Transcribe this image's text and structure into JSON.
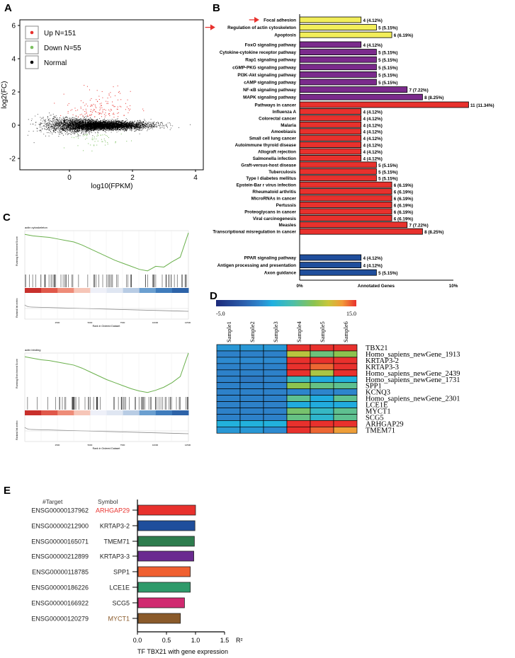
{
  "panels": {
    "a": "A",
    "b": "B",
    "c": "C",
    "d": "D",
    "e": "E"
  },
  "chart_data": [
    {
      "type": "scatter",
      "panel": "A",
      "xlabel": "log10(FPKM)",
      "ylabel": "log2(FC)",
      "xlim": [
        -1.6,
        4.3
      ],
      "ylim": [
        -2.6,
        6.3
      ],
      "xticks": [
        "0",
        "2",
        "4"
      ],
      "yticks": [
        "6",
        "4",
        "2",
        "0",
        "-2"
      ],
      "legend": [
        {
          "label": "Up N=151",
          "color": "#e8312d"
        },
        {
          "label": "Down  N=55",
          "color": "#7cc060"
        },
        {
          "label": "Normal",
          "color": "#000000"
        }
      ],
      "up_count": 151,
      "down_count": 55,
      "legend_position": "top-left"
    },
    {
      "type": "bar",
      "panel": "B",
      "orientation": "horizontal",
      "xlabel": "Annotated Genes",
      "xticks": [
        "0%",
        "10%"
      ],
      "xlim": [
        0,
        10
      ],
      "groups": [
        {
          "color": "#f2ee5a",
          "items": [
            {
              "label": "Focal adhesion",
              "value": 4,
              "text": "4 (4.12%)",
              "arrow": true
            },
            {
              "label": "Regulation of actin cytoskeleton",
              "value": 5,
              "text": "5 (5.15%)",
              "arrow": true
            },
            {
              "label": "Apoptosis",
              "value": 6,
              "text": "6 (6.19%)"
            }
          ]
        },
        {
          "color": "#7b2b8c",
          "items": [
            {
              "label": "FoxO signaling pathway",
              "value": 4,
              "text": "4 (4.12%)"
            },
            {
              "label": "Cytokine-cytokine receptor pathway",
              "value": 5,
              "text": "5 (5.15%)"
            },
            {
              "label": "Rap1 signaling pathway",
              "value": 5,
              "text": "5 (5.15%)"
            },
            {
              "label": "cGMP-PKG signaling pathway",
              "value": 5,
              "text": "5 (5.15%)"
            },
            {
              "label": "PI3K-Akt signaling pathway",
              "value": 5,
              "text": "5 (5.15%)"
            },
            {
              "label": "cAMP signaling pathway",
              "value": 5,
              "text": "5 (5.15%)"
            },
            {
              "label": "NF-κB signaling pathway",
              "value": 7,
              "text": "7 (7.22%)"
            },
            {
              "label": "MAPK signaling pathway",
              "value": 8,
              "text": "8 (8.25%)"
            }
          ]
        },
        {
          "color": "#e8312d",
          "items": [
            {
              "label": "Pathways in cancer",
              "value": 11,
              "text": "11 (11.34%)"
            },
            {
              "label": "Influenza A",
              "value": 4,
              "text": "4 (4.12%)"
            },
            {
              "label": "Colorectal cancer",
              "value": 4,
              "text": "4 (4.12%)"
            },
            {
              "label": "Malaria",
              "value": 4,
              "text": "4 (4.12%)"
            },
            {
              "label": "Amoebiasis",
              "value": 4,
              "text": "4 (4.12%)"
            },
            {
              "label": "Small cell lung cancer",
              "value": 4,
              "text": "4 (4.12%)"
            },
            {
              "label": "Autoimmune thyroid disease",
              "value": 4,
              "text": "4 (4.12%)"
            },
            {
              "label": "Allograft rejection",
              "value": 4,
              "text": "4 (4.12%)"
            },
            {
              "label": "Salmonella infection",
              "value": 4,
              "text": "4 (4.12%)"
            },
            {
              "label": "Graft-versus-host disease",
              "value": 5,
              "text": "5 (5.15%)"
            },
            {
              "label": "Tuberculosis",
              "value": 5,
              "text": "5 (5.15%)"
            },
            {
              "label": "Type I diabetes mellitus",
              "value": 5,
              "text": "5 (5.15%)"
            },
            {
              "label": "Epstein-Bar r virus infection",
              "value": 6,
              "text": "6 (6.19%)"
            },
            {
              "label": "Rheumatoid arthritis",
              "value": 6,
              "text": "6 (6.19%)"
            },
            {
              "label": "MicroRNAs in cancer",
              "value": 6,
              "text": "6 (6.19%)"
            },
            {
              "label": "Pertussis",
              "value": 6,
              "text": "6 (6.19%)"
            },
            {
              "label": "Proteoglycans in cancer",
              "value": 6,
              "text": "6 (6.19%)"
            },
            {
              "label": "Viral carcinogenesis",
              "value": 6,
              "text": "6 (6.19%)"
            },
            {
              "label": "Measles",
              "value": 7,
              "text": "7 (7.22%)"
            },
            {
              "label": "Transcriptional misregulation in cancer",
              "value": 8,
              "text": "8 (8.25%)"
            }
          ]
        },
        {
          "color": "#1f4e9c",
          "items": [
            {
              "label": "PPAR signaling pathway",
              "value": 4,
              "text": "4 (4.12%)"
            },
            {
              "label": "Antigen processing and presentation",
              "value": 4,
              "text": "4 (4.12%)"
            },
            {
              "label": "Axon guidance",
              "value": 5,
              "text": "5 (5.15%)"
            }
          ]
        }
      ]
    },
    {
      "type": "line",
      "panel": "C",
      "plots": [
        {
          "title": "actin cytoskeleton",
          "ylabel": "Running Enrichment Score",
          "ylabel2": "Ranked list metric",
          "xlabel": "Rank in Ordered Dataset",
          "xticks": [
            "2500",
            "5000",
            "7500",
            "10000",
            "12500"
          ],
          "es": [
            0,
            -0.02,
            -0.03,
            -0.04,
            -0.06,
            -0.08,
            -0.1,
            -0.14,
            -0.19,
            -0.24,
            -0.29,
            -0.34,
            -0.38,
            -0.42,
            -0.46,
            -0.48,
            -0.42,
            -0.43,
            -0.36,
            -0.3,
            0.02
          ]
        },
        {
          "title": "actin binding",
          "ylabel": "Running Enrichment Score",
          "ylabel2": "Ranked list metric",
          "xlabel": "Rank in Ordered Dataset",
          "xticks": [
            "2500",
            "5000",
            "7500",
            "10000",
            "12500"
          ],
          "es": [
            0,
            -0.02,
            -0.04,
            -0.05,
            -0.07,
            -0.09,
            -0.11,
            -0.15,
            -0.2,
            -0.25,
            -0.3,
            -0.34,
            -0.38,
            -0.42,
            -0.45,
            -0.47,
            -0.44,
            -0.4,
            -0.34,
            -0.26,
            0.05
          ]
        }
      ]
    },
    {
      "type": "heatmap",
      "panel": "D",
      "colorbar": {
        "min_label": "-5.0",
        "max_label": "15.0",
        "range": [
          -5,
          15
        ]
      },
      "columns": [
        "Sample1",
        "Sample2",
        "Sample3",
        "Sample4",
        "Sample5",
        "Sample6"
      ],
      "rows": [
        {
          "gene": "TBX21",
          "values": [
            2,
            2,
            2,
            15,
            15,
            15
          ]
        },
        {
          "gene": "Homo_sapiens_newGene_1913",
          "values": [
            1,
            1,
            1,
            10.5,
            7.5,
            9
          ]
        },
        {
          "gene": "KRTAP3-2",
          "values": [
            1.5,
            1.5,
            1.5,
            15,
            15,
            15
          ]
        },
        {
          "gene": "KRTAP3-3",
          "values": [
            1,
            1,
            1,
            15,
            14,
            15
          ]
        },
        {
          "gene": "Homo_sapiens_newGene_2439",
          "values": [
            1,
            1,
            1,
            15,
            10,
            15
          ]
        },
        {
          "gene": "Homo_sapiens_newGene_1731",
          "values": [
            1,
            0.5,
            1,
            5,
            2.8,
            3.2
          ]
        },
        {
          "gene": "SPP1",
          "values": [
            1,
            1,
            1,
            9,
            7.2,
            6.8
          ]
        },
        {
          "gene": "KCNQ3",
          "values": [
            1,
            1,
            1,
            1.2,
            1.2,
            1.2
          ]
        },
        {
          "gene": "Homo_sapiens_newGene_2301",
          "values": [
            1,
            1,
            1,
            6.8,
            2.8,
            6.8
          ]
        },
        {
          "gene": "LCE1E",
          "values": [
            1,
            1,
            1,
            2.8,
            2.8,
            2.8
          ]
        },
        {
          "gene": "MYCT1",
          "values": [
            1,
            1,
            1,
            8,
            4.5,
            6.8
          ]
        },
        {
          "gene": "SCG5",
          "values": [
            1,
            1,
            1,
            7.2,
            4,
            6.8
          ]
        },
        {
          "gene": "ARHGAP29",
          "values": [
            3.2,
            3.2,
            3.2,
            15,
            15,
            15
          ]
        },
        {
          "gene": "TMEM71",
          "values": [
            2,
            2,
            1.5,
            15,
            14,
            12.8
          ]
        }
      ]
    },
    {
      "type": "bar",
      "panel": "E",
      "orientation": "horizontal",
      "header_target": "#Target",
      "header_symbol": "Symbol",
      "xlabel": "TF TBX21 with gene expression",
      "xunit": "R²",
      "xlim": [
        0,
        1.5
      ],
      "xticks": [
        "0.0",
        "0.5",
        "1.0",
        "1.5"
      ],
      "bars": [
        {
          "target": "ENSG00000137962",
          "symbol": "ARHGAP29",
          "value": 1.0,
          "color": "#e8312d",
          "symbol_color": "#e8312d"
        },
        {
          "target": "ENSG00000212900",
          "symbol": "KRTAP3-2",
          "value": 0.99,
          "color": "#1f4e9c",
          "symbol_color": "#222222"
        },
        {
          "target": "ENSG00000165071",
          "symbol": "TMEM71",
          "value": 0.98,
          "color": "#2e7d4e",
          "symbol_color": "#222222"
        },
        {
          "target": "ENSG00000212899",
          "symbol": "KRTAP3-3",
          "value": 0.97,
          "color": "#6a2a90",
          "symbol_color": "#222222"
        },
        {
          "target": "ENSG00000118785",
          "symbol": "SPP1",
          "value": 0.91,
          "color": "#f06030",
          "symbol_color": "#222222"
        },
        {
          "target": "ENSG00000186226",
          "symbol": "LCE1E",
          "value": 0.91,
          "color": "#2e9a6a",
          "symbol_color": "#222222"
        },
        {
          "target": "ENSG00000166922",
          "symbol": "SCG5",
          "value": 0.81,
          "color": "#d02a70",
          "symbol_color": "#222222"
        },
        {
          "target": "ENSG00000120279",
          "symbol": "MYCT1",
          "value": 0.74,
          "color": "#8a5a2a",
          "symbol_color": "#8a5a2a"
        }
      ]
    }
  ]
}
